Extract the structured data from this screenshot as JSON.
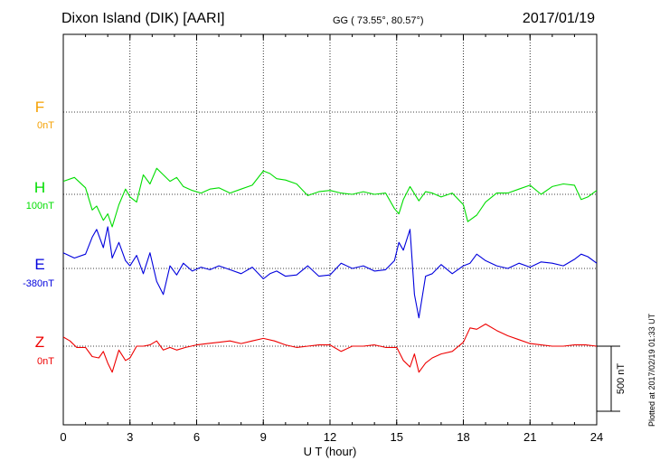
{
  "header": {
    "station": "Dixon Island (DIK)  [AARI]",
    "coords": "GG ( 73.55°,  80.57°)",
    "date": "2017/01/19"
  },
  "side_note": "Plotted at 2017/02/19 01:33 UT",
  "chart_data": {
    "type": "line",
    "xlabel": "U T (hour)",
    "xlim": [
      0,
      24
    ],
    "x_ticks": [
      "0",
      "3",
      "6",
      "9",
      "12",
      "15",
      "18",
      "21",
      "24"
    ],
    "scale_bar_label": "500 nT",
    "scale_bar_nT": 500,
    "grid": true,
    "series": [
      {
        "name": "F",
        "baseline_label": "0nT",
        "color": "#f5a000",
        "x": [],
        "y": []
      },
      {
        "name": "H",
        "baseline_label": "100nT",
        "color": "#00dd00",
        "x": [
          0,
          0.5,
          1,
          1.3,
          1.5,
          1.8,
          2.0,
          2.2,
          2.5,
          2.8,
          3.0,
          3.3,
          3.6,
          3.9,
          4.2,
          4.5,
          4.8,
          5.1,
          5.4,
          5.8,
          6.2,
          6.6,
          7.0,
          7.5,
          8.0,
          8.5,
          9.0,
          9.3,
          9.6,
          10.0,
          10.5,
          11.0,
          11.5,
          12.0,
          12.5,
          13.0,
          13.5,
          14.0,
          14.5,
          14.9,
          15.1,
          15.3,
          15.6,
          16.0,
          16.3,
          16.6,
          17.0,
          17.5,
          18.0,
          18.2,
          18.6,
          19.0,
          19.5,
          20.0,
          20.5,
          21.0,
          21.5,
          22.0,
          22.5,
          23.0,
          23.3,
          23.6,
          24.0
        ],
        "y": [
          100,
          130,
          50,
          -120,
          -90,
          -200,
          -150,
          -250,
          -80,
          40,
          -20,
          -60,
          150,
          80,
          200,
          150,
          100,
          130,
          60,
          30,
          10,
          40,
          50,
          10,
          40,
          70,
          180,
          160,
          120,
          110,
          80,
          -10,
          20,
          30,
          10,
          0,
          20,
          0,
          10,
          -110,
          -150,
          -40,
          60,
          -50,
          20,
          10,
          -20,
          10,
          -80,
          -210,
          -160,
          -60,
          10,
          10,
          40,
          70,
          0,
          60,
          80,
          70,
          -40,
          -20,
          30
        ]
      },
      {
        "name": "E",
        "baseline_label": "-380nT",
        "color": "#0000dd",
        "x": [
          0,
          0.5,
          1,
          1.3,
          1.5,
          1.8,
          2.0,
          2.2,
          2.5,
          2.8,
          3.0,
          3.3,
          3.6,
          3.9,
          4.2,
          4.5,
          4.8,
          5.1,
          5.4,
          5.8,
          6.2,
          6.6,
          7.0,
          7.5,
          8.0,
          8.5,
          9.0,
          9.3,
          9.6,
          10.0,
          10.5,
          11.0,
          11.5,
          12.0,
          12.5,
          13.0,
          13.5,
          14.0,
          14.5,
          14.9,
          15.1,
          15.3,
          15.6,
          15.8,
          16.0,
          16.3,
          16.6,
          17.0,
          17.5,
          18.0,
          18.3,
          18.6,
          19.0,
          19.5,
          20.0,
          20.5,
          21.0,
          21.5,
          22.0,
          22.5,
          23.0,
          23.3,
          23.6,
          24.0
        ],
        "y": [
          120,
          80,
          110,
          240,
          300,
          160,
          320,
          80,
          200,
          60,
          20,
          100,
          -40,
          120,
          -100,
          -200,
          20,
          -50,
          40,
          -20,
          10,
          -10,
          20,
          -10,
          -40,
          10,
          -80,
          -40,
          -20,
          -60,
          -50,
          20,
          -60,
          -50,
          40,
          0,
          20,
          -20,
          -10,
          60,
          200,
          140,
          300,
          -200,
          -380,
          -60,
          -40,
          30,
          -40,
          20,
          40,
          110,
          60,
          20,
          0,
          40,
          10,
          50,
          40,
          20,
          70,
          110,
          90,
          40
        ]
      },
      {
        "name": "Z",
        "baseline_label": "0nT",
        "color": "#ee0000",
        "x": [
          0,
          0.3,
          0.6,
          1.0,
          1.3,
          1.6,
          1.8,
          2.0,
          2.2,
          2.5,
          2.8,
          3.0,
          3.3,
          3.6,
          3.9,
          4.2,
          4.5,
          4.8,
          5.1,
          5.5,
          6.0,
          6.5,
          7.0,
          7.5,
          8.0,
          8.5,
          9.0,
          9.5,
          10.0,
          10.5,
          11.0,
          11.5,
          12.0,
          12.5,
          13.0,
          13.5,
          14.0,
          14.5,
          15.0,
          15.3,
          15.6,
          15.8,
          16.0,
          16.3,
          16.6,
          17.0,
          17.5,
          18.0,
          18.3,
          18.6,
          19.0,
          19.5,
          20.0,
          20.5,
          21.0,
          21.5,
          22.0,
          22.5,
          23.0,
          23.5,
          24.0
        ],
        "y": [
          70,
          40,
          -10,
          -10,
          -80,
          -90,
          -40,
          -130,
          -200,
          -30,
          -110,
          -90,
          0,
          0,
          10,
          40,
          -30,
          -10,
          -30,
          -10,
          10,
          20,
          30,
          40,
          20,
          40,
          60,
          40,
          10,
          -10,
          0,
          10,
          10,
          -40,
          0,
          0,
          10,
          -10,
          -10,
          -110,
          -160,
          -60,
          -200,
          -130,
          -90,
          -60,
          -40,
          30,
          140,
          130,
          170,
          120,
          80,
          50,
          20,
          10,
          0,
          0,
          10,
          10,
          0
        ]
      }
    ]
  }
}
